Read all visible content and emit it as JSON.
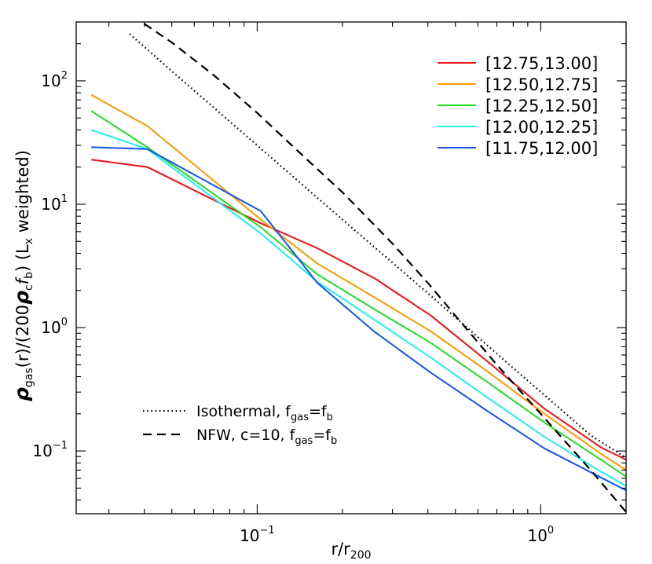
{
  "chart_data": {
    "type": "line",
    "title": "",
    "xlabel": "r/r",
    "xlabel_sub": "200",
    "ylabel_parts": {
      "rho": "ρ",
      "gas_sub": "gas",
      "mid1": "(r)/(200",
      "c_sub": "c",
      "f": "f",
      "b_sub": "b",
      "mid2": ")  (L",
      "x_sub": "x",
      "end": " weighted)"
    },
    "xscale": "log",
    "yscale": "log",
    "xlim": [
      0.023,
      2.0
    ],
    "ylim": [
      0.031,
      300
    ],
    "x_ticks": [
      {
        "value": 0.1,
        "base": "10",
        "exp": "−1"
      },
      {
        "value": 1.0,
        "base": "10",
        "exp": "0"
      }
    ],
    "y_ticks": [
      {
        "value": 0.1,
        "base": "10",
        "exp": "−1"
      },
      {
        "value": 1,
        "base": "10",
        "exp": "0"
      },
      {
        "value": 10,
        "base": "10",
        "exp": "1"
      },
      {
        "value": 100,
        "base": "10",
        "exp": "2"
      }
    ],
    "grid": false,
    "legend_position": "top-right",
    "series": [
      {
        "name": "[12.75,13.00]",
        "color": "#ee1111",
        "style": "solid",
        "x": [
          0.026,
          0.041,
          0.103,
          0.163,
          0.26,
          0.41,
          0.65,
          1.03,
          1.63,
          2.0
        ],
        "y": [
          23,
          20,
          7.0,
          4.4,
          2.5,
          1.25,
          0.53,
          0.22,
          0.107,
          0.085
        ]
      },
      {
        "name": "[12.50,12.75]",
        "color": "#ff9900",
        "style": "solid",
        "x": [
          0.026,
          0.041,
          0.103,
          0.163,
          0.26,
          0.41,
          0.65,
          1.03,
          1.63,
          2.0
        ],
        "y": [
          77,
          43,
          7.5,
          3.3,
          1.75,
          0.93,
          0.44,
          0.2,
          0.095,
          0.07
        ]
      },
      {
        "name": "[12.25,12.50]",
        "color": "#22dd22",
        "style": "solid",
        "x": [
          0.026,
          0.041,
          0.103,
          0.163,
          0.26,
          0.41,
          0.65,
          1.03,
          1.63,
          2.0
        ],
        "y": [
          57,
          29,
          6.5,
          2.7,
          1.4,
          0.75,
          0.36,
          0.17,
          0.085,
          0.062
        ]
      },
      {
        "name": "[12.00,12.25]",
        "color": "#22eeee",
        "style": "solid",
        "x": [
          0.026,
          0.041,
          0.103,
          0.163,
          0.26,
          0.41,
          0.65,
          1.03,
          1.63,
          2.0
        ],
        "y": [
          40,
          28,
          5.8,
          2.35,
          1.15,
          0.57,
          0.27,
          0.13,
          0.068,
          0.052
        ]
      },
      {
        "name": "[11.75,12.00]",
        "color": "#1155ee",
        "style": "solid",
        "x": [
          0.026,
          0.041,
          0.103,
          0.163,
          0.26,
          0.41,
          0.65,
          1.03,
          1.63,
          2.0
        ],
        "y": [
          29,
          28,
          8.8,
          2.3,
          0.92,
          0.43,
          0.21,
          0.105,
          0.061,
          0.048
        ]
      },
      {
        "name": "Isothermal, f_gas=f_b",
        "color": "#000000",
        "style": "dotted",
        "x": [
          0.0355,
          0.05,
          0.1,
          0.2,
          0.4,
          0.8,
          1.5,
          2.0
        ],
        "y": [
          240,
          120,
          30,
          7.5,
          1.9,
          0.47,
          0.134,
          0.088
        ]
      },
      {
        "name": "NFW, c=10, f_gas=f_b",
        "color": "#000000",
        "style": "dashed",
        "x": [
          0.04,
          0.05,
          0.07,
          0.1,
          0.15,
          0.2,
          0.3,
          0.4,
          0.5,
          0.7,
          1.0,
          1.5,
          2.0
        ],
        "y": [
          290,
          205,
          112,
          55,
          23,
          12.5,
          4.8,
          2.3,
          1.25,
          0.5,
          0.2,
          0.07,
          0.032
        ]
      }
    ],
    "legend_lower": [
      {
        "label": "Isothermal, f",
        "sub1": "gas",
        "mid": "=f",
        "sub2": "b"
      },
      {
        "label": "NFW, c=10, f",
        "sub1": "gas",
        "mid": "=f",
        "sub2": "b"
      }
    ]
  }
}
